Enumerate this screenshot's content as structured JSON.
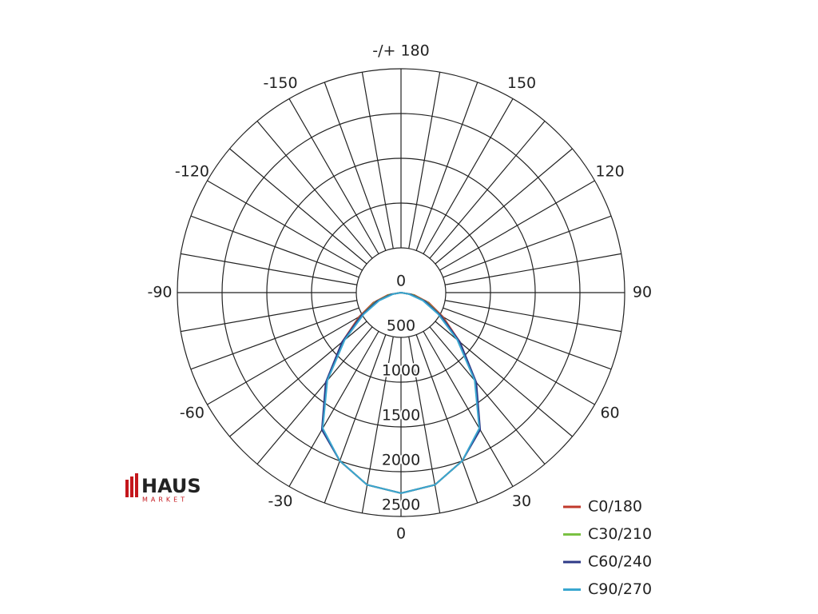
{
  "chart_data": {
    "type": "polar",
    "x": [
      -90,
      -80,
      -70,
      -60,
      -50,
      -40,
      -30,
      -20,
      -10,
      0,
      10,
      20,
      30,
      40,
      50,
      60,
      70,
      80,
      90
    ],
    "series": [
      {
        "name": "C0/180",
        "color": "#c0392b",
        "values": [
          0,
          150,
          330,
          540,
          860,
          1300,
          1760,
          2000,
          2180,
          2240,
          2180,
          2000,
          1760,
          1300,
          860,
          540,
          330,
          150,
          0
        ]
      },
      {
        "name": "C30/210",
        "color": "#7ac143",
        "values": [
          0,
          130,
          310,
          520,
          850,
          1290,
          1760,
          2000,
          2180,
          2240,
          2180,
          2000,
          1760,
          1290,
          850,
          520,
          310,
          130,
          0
        ]
      },
      {
        "name": "C60/240",
        "color": "#2e3a87",
        "values": [
          0,
          110,
          290,
          510,
          860,
          1310,
          1770,
          2000,
          2180,
          2240,
          2180,
          2000,
          1770,
          1310,
          860,
          510,
          290,
          110,
          0
        ]
      },
      {
        "name": "C90/270",
        "color": "#3aa7d0",
        "values": [
          0,
          90,
          260,
          480,
          820,
          1280,
          1750,
          2000,
          2180,
          2240,
          2180,
          2000,
          1750,
          1280,
          820,
          480,
          260,
          90,
          0
        ]
      }
    ],
    "rlim": [
      0,
      2500
    ],
    "rticks": [
      0,
      500,
      1000,
      1500,
      2000,
      2500
    ],
    "angle_ticks": [
      0,
      30,
      60,
      90,
      120,
      150,
      {
        "value": 180,
        "label": "-/+ 180"
      },
      -150,
      -120,
      -90,
      -60,
      -30
    ],
    "legend": "lower right"
  },
  "logo": {
    "name": "HAUS",
    "sub": "MARKET"
  }
}
